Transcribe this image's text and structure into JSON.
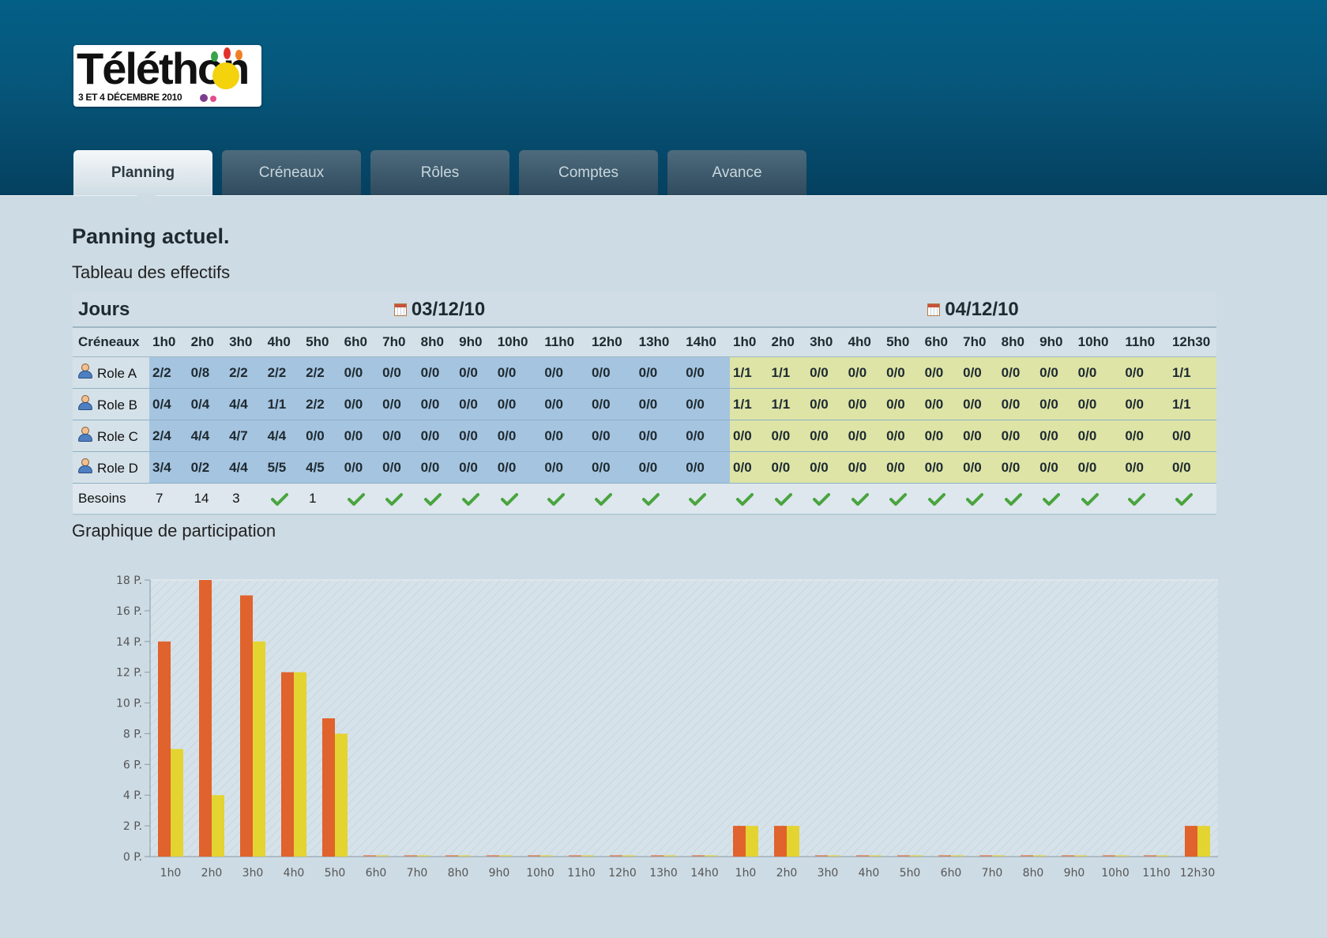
{
  "app": {
    "logo_text": "Téléthon",
    "logo_subtitle": "3 ET 4 DÉCEMBRE 2010"
  },
  "tabs": [
    {
      "label": "Planning",
      "active": true
    },
    {
      "label": "Créneaux",
      "active": false
    },
    {
      "label": "Rôles",
      "active": false
    },
    {
      "label": "Comptes",
      "active": false
    },
    {
      "label": "Avance",
      "active": false
    }
  ],
  "main": {
    "title": "Panning actuel.",
    "table_title": "Tableau des effectifs",
    "chart_title": "Graphique de participation"
  },
  "table": {
    "days_label": "Jours",
    "slots_label": "Créneaux",
    "needs_label": "Besoins",
    "days": [
      {
        "date": "03/12/10",
        "slots": [
          "1h0",
          "2h0",
          "3h0",
          "4h0",
          "5h0",
          "6h0",
          "7h0",
          "8h0",
          "9h0",
          "10h0",
          "11h0",
          "12h0",
          "13h0",
          "14h0"
        ]
      },
      {
        "date": "04/12/10",
        "slots": [
          "1h0",
          "2h0",
          "3h0",
          "4h0",
          "5h0",
          "6h0",
          "7h0",
          "8h0",
          "9h0",
          "10h0",
          "11h0",
          "12h30"
        ]
      }
    ],
    "roles": [
      {
        "name": "Role A",
        "values": [
          "2/2",
          "0/8",
          "2/2",
          "2/2",
          "2/2",
          "0/0",
          "0/0",
          "0/0",
          "0/0",
          "0/0",
          "0/0",
          "0/0",
          "0/0",
          "0/0",
          "1/1",
          "1/1",
          "0/0",
          "0/0",
          "0/0",
          "0/0",
          "0/0",
          "0/0",
          "0/0",
          "0/0",
          "0/0",
          "1/1"
        ]
      },
      {
        "name": "Role B",
        "values": [
          "0/4",
          "0/4",
          "4/4",
          "1/1",
          "2/2",
          "0/0",
          "0/0",
          "0/0",
          "0/0",
          "0/0",
          "0/0",
          "0/0",
          "0/0",
          "0/0",
          "1/1",
          "1/1",
          "0/0",
          "0/0",
          "0/0",
          "0/0",
          "0/0",
          "0/0",
          "0/0",
          "0/0",
          "0/0",
          "1/1"
        ]
      },
      {
        "name": "Role C",
        "values": [
          "2/4",
          "4/4",
          "4/7",
          "4/4",
          "0/0",
          "0/0",
          "0/0",
          "0/0",
          "0/0",
          "0/0",
          "0/0",
          "0/0",
          "0/0",
          "0/0",
          "0/0",
          "0/0",
          "0/0",
          "0/0",
          "0/0",
          "0/0",
          "0/0",
          "0/0",
          "0/0",
          "0/0",
          "0/0",
          "0/0"
        ]
      },
      {
        "name": "Role D",
        "values": [
          "3/4",
          "0/2",
          "4/4",
          "5/5",
          "4/5",
          "0/0",
          "0/0",
          "0/0",
          "0/0",
          "0/0",
          "0/0",
          "0/0",
          "0/0",
          "0/0",
          "0/0",
          "0/0",
          "0/0",
          "0/0",
          "0/0",
          "0/0",
          "0/0",
          "0/0",
          "0/0",
          "0/0",
          "0/0",
          "0/0"
        ]
      }
    ],
    "needs": [
      "7",
      "14",
      "3",
      "check",
      "1",
      "check",
      "check",
      "check",
      "check",
      "check",
      "check",
      "check",
      "check",
      "check",
      "check",
      "check",
      "check",
      "check",
      "check",
      "check",
      "check",
      "check",
      "check",
      "check",
      "check",
      "check"
    ],
    "icons": {
      "day": "calendar-icon",
      "role": "user-icon",
      "ok": "check-icon"
    }
  },
  "chart_data": {
    "type": "bar",
    "categories": [
      "1h0",
      "2h0",
      "3h0",
      "4h0",
      "5h0",
      "6h0",
      "7h0",
      "8h0",
      "9h0",
      "10h0",
      "11h0",
      "12h0",
      "13h0",
      "14h0",
      "1h0",
      "2h0",
      "3h0",
      "4h0",
      "5h0",
      "6h0",
      "7h0",
      "8h0",
      "9h0",
      "10h0",
      "11h0",
      "12h30"
    ],
    "series": [
      {
        "values": [
          14,
          18,
          17,
          12,
          9,
          0,
          0,
          0,
          0,
          0,
          0,
          0,
          0,
          0,
          2,
          2,
          0,
          0,
          0,
          0,
          0,
          0,
          0,
          0,
          0,
          2
        ],
        "color": "#e0622c"
      },
      {
        "values": [
          7,
          4,
          14,
          12,
          8,
          0,
          0,
          0,
          0,
          0,
          0,
          0,
          0,
          0,
          2,
          2,
          0,
          0,
          0,
          0,
          0,
          0,
          0,
          0,
          0,
          2
        ],
        "color": "#e3d431"
      }
    ],
    "yticks": [
      "0 P.",
      "2 P.",
      "4 P.",
      "6 P.",
      "8 P.",
      "10 P.",
      "12 P.",
      "14 P.",
      "16 P.",
      "18 P."
    ],
    "ylim": [
      0,
      18
    ],
    "grid": false,
    "legend": "none"
  }
}
